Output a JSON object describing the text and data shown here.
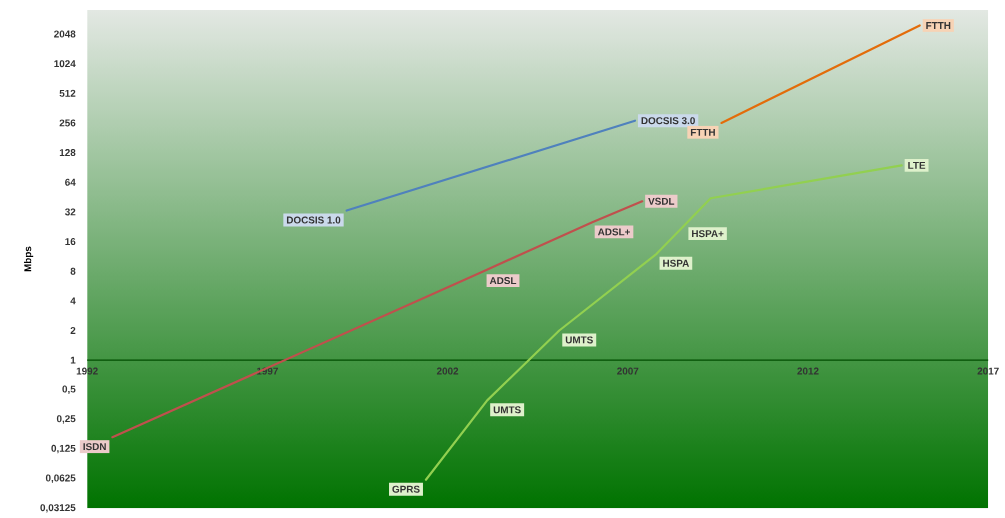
{
  "chart_data": {
    "type": "line",
    "ylabel": "Mbps",
    "log": "y",
    "marker": "none",
    "line_style": "solid",
    "xlim": [
      1992,
      2017
    ],
    "xticks": [
      1992,
      1997,
      2002,
      2007,
      2012,
      2017
    ],
    "ylim": [
      0.03125,
      3600
    ],
    "yticks": [
      {
        "value": 0.03125,
        "label": "0,03125"
      },
      {
        "value": 0.0625,
        "label": "0,0625"
      },
      {
        "value": 0.125,
        "label": "0,125"
      },
      {
        "value": 0.25,
        "label": "0,25"
      },
      {
        "value": 0.5,
        "label": "0,5"
      },
      1,
      2,
      4,
      8,
      16,
      32,
      64,
      128,
      256,
      512,
      1024,
      2048
    ],
    "series": [
      {
        "color": "#4f81bd",
        "x": [
          1999.2,
          2007.2
        ],
        "values": [
          33,
          270
        ]
      },
      {
        "color": "#c0504d",
        "x": [
          1992.7,
          2003.0,
          2006.0,
          2007.4
        ],
        "values": [
          0.165,
          8,
          25,
          41
        ]
      },
      {
        "color": "#e36c0a",
        "x": [
          2009.6,
          2015.1
        ],
        "values": [
          256,
          2500
        ]
      },
      {
        "color": "#92d050",
        "x": [
          2001.4,
          2003.1,
          2005.1,
          2007.8,
          2008.6,
          2009.3,
          2014.6
        ],
        "values": [
          0.061,
          0.39,
          2,
          12,
          24,
          44,
          95
        ]
      }
    ],
    "annotations": [
      {
        "text": "DOCSIS 1.0",
        "x": 1999.2,
        "y": 33
      },
      {
        "text": "DOCSIS 3.0",
        "x": 2007.2,
        "y": 270
      },
      {
        "text": "ISDN",
        "x": 1992.7,
        "y": 0.165
      },
      {
        "text": "ADSL",
        "x": 2003.0,
        "y": 8
      },
      {
        "text": "ADSL+",
        "x": 2006.0,
        "y": 25
      },
      {
        "text": "VSDL",
        "x": 2007.4,
        "y": 41
      },
      {
        "text": "FTTH",
        "x": 2009.6,
        "y": 256
      },
      {
        "text": "FTTH",
        "x": 2015.1,
        "y": 2500
      },
      {
        "text": "GPRS",
        "x": 2001.4,
        "y": 0.061
      },
      {
        "text": "UMTS",
        "x": 2003.1,
        "y": 0.39
      },
      {
        "text": "UMTS",
        "x": 2005.1,
        "y": 2
      },
      {
        "text": "HSPA",
        "x": 2007.8,
        "y": 12
      },
      {
        "text": "HSPA+",
        "x": 2008.6,
        "y": 24
      },
      {
        "text": "LTE",
        "x": 2014.6,
        "y": 95
      }
    ]
  }
}
